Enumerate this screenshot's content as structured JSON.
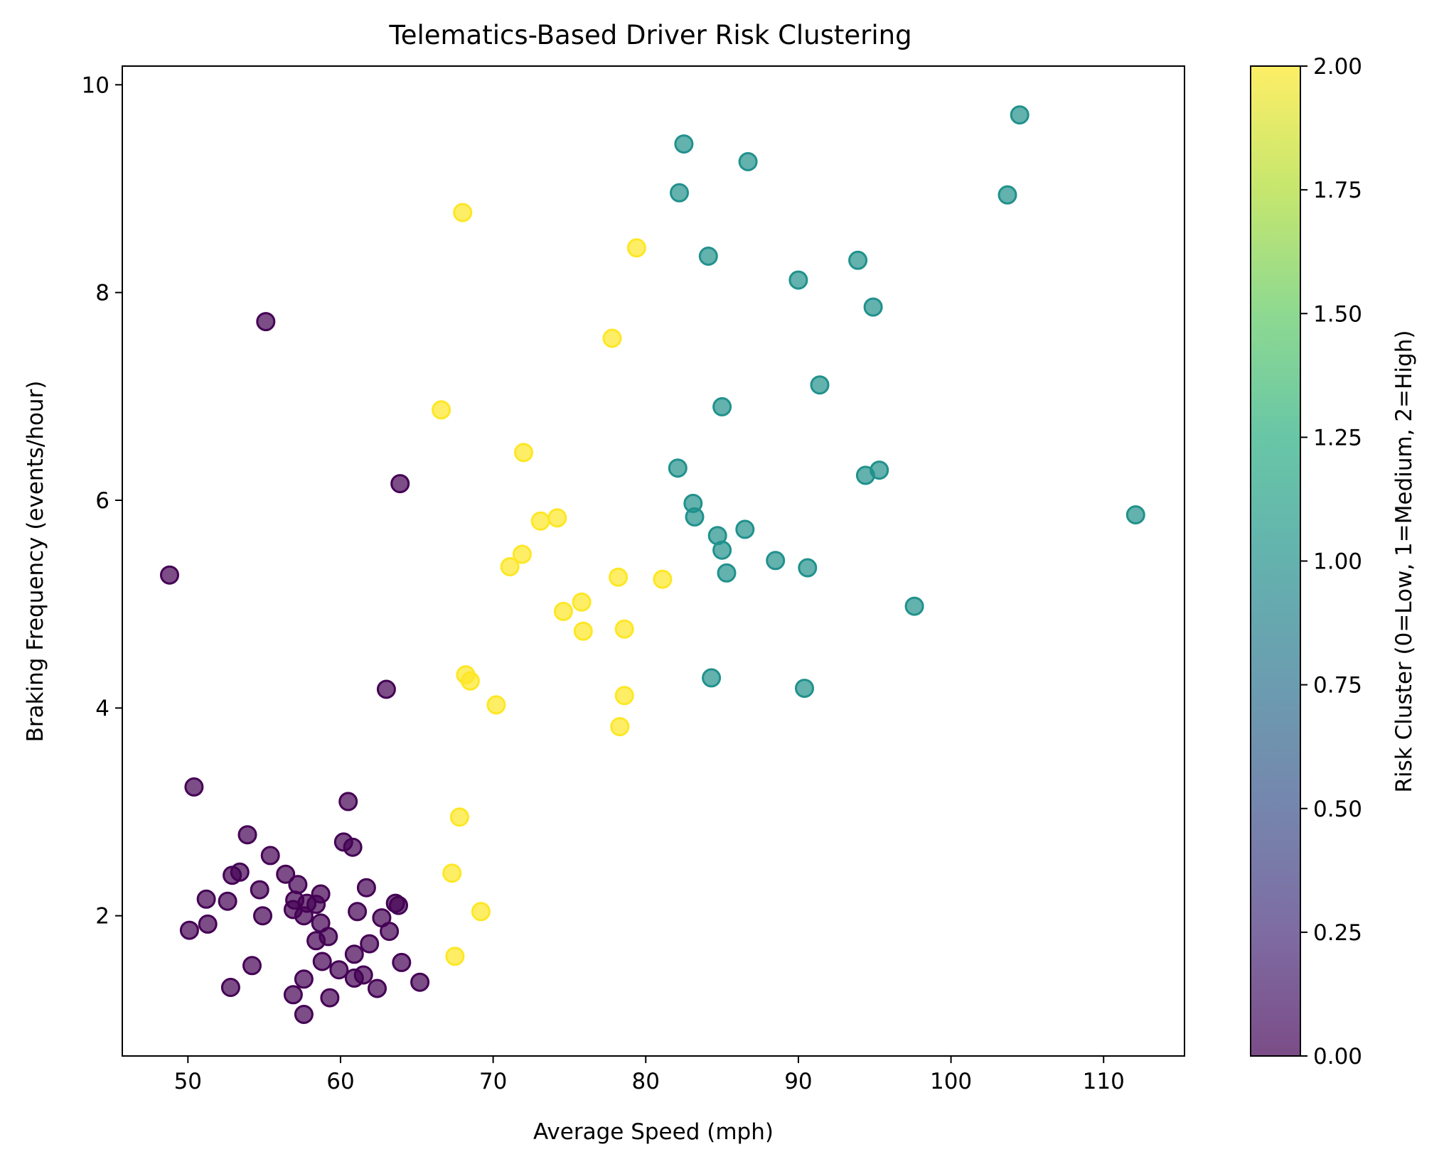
{
  "chart_data": {
    "type": "scatter",
    "title": "Telematics-Based Driver Risk Clustering",
    "xlabel": "Average Speed (mph)",
    "ylabel": "Braking Frequency (events/hour)",
    "colorbar_label": "Risk Cluster (0=Low, 1=Medium, 2=High)",
    "xlim": [
      45.7,
      115.3
    ],
    "ylim": [
      0.65,
      10.18
    ],
    "x_ticks": [
      "50",
      "60",
      "70",
      "80",
      "90",
      "100",
      "110"
    ],
    "y_ticks": [
      "2",
      "4",
      "6",
      "8",
      "10"
    ],
    "colorbar_ticks": [
      "0.00",
      "0.25",
      "0.50",
      "0.75",
      "1.00",
      "1.25",
      "1.50",
      "1.75",
      "2.00"
    ],
    "colorbar_range": [
      0,
      2
    ],
    "grid": false,
    "marker_alpha": 0.7,
    "colors": {
      "cluster_0": "#440154",
      "cluster_1": "#21918c",
      "cluster_2": "#fde725"
    },
    "series": [
      {
        "cluster": 0,
        "points": [
          [
            55.1,
            7.72
          ],
          [
            63.9,
            6.16
          ],
          [
            48.8,
            5.28
          ],
          [
            63.0,
            4.18
          ],
          [
            50.4,
            3.24
          ],
          [
            60.5,
            3.1
          ],
          [
            53.9,
            2.78
          ],
          [
            60.2,
            2.71
          ],
          [
            60.8,
            2.66
          ],
          [
            55.4,
            2.58
          ],
          [
            53.4,
            2.42
          ],
          [
            52.9,
            2.39
          ],
          [
            56.4,
            2.4
          ],
          [
            57.2,
            2.3
          ],
          [
            61.7,
            2.27
          ],
          [
            54.7,
            2.25
          ],
          [
            58.7,
            2.21
          ],
          [
            51.2,
            2.16
          ],
          [
            52.6,
            2.14
          ],
          [
            57.0,
            2.15
          ],
          [
            57.8,
            2.12
          ],
          [
            58.4,
            2.11
          ],
          [
            63.6,
            2.12
          ],
          [
            63.8,
            2.1
          ],
          [
            56.9,
            2.06
          ],
          [
            61.1,
            2.04
          ],
          [
            54.9,
            2.0
          ],
          [
            57.6,
            2.0
          ],
          [
            62.7,
            1.98
          ],
          [
            58.7,
            1.93
          ],
          [
            51.3,
            1.92
          ],
          [
            50.1,
            1.86
          ],
          [
            63.2,
            1.85
          ],
          [
            59.2,
            1.8
          ],
          [
            58.4,
            1.76
          ],
          [
            61.9,
            1.73
          ],
          [
            60.9,
            1.63
          ],
          [
            58.8,
            1.56
          ],
          [
            64.0,
            1.55
          ],
          [
            54.2,
            1.52
          ],
          [
            59.9,
            1.48
          ],
          [
            61.5,
            1.43
          ],
          [
            60.9,
            1.4
          ],
          [
            57.6,
            1.39
          ],
          [
            65.2,
            1.36
          ],
          [
            52.8,
            1.31
          ],
          [
            62.4,
            1.3
          ],
          [
            56.9,
            1.24
          ],
          [
            59.3,
            1.21
          ],
          [
            57.6,
            1.05
          ]
        ]
      },
      {
        "cluster": 1,
        "points": [
          [
            104.5,
            9.71
          ],
          [
            82.5,
            9.43
          ],
          [
            86.7,
            9.26
          ],
          [
            82.2,
            8.96
          ],
          [
            103.7,
            8.94
          ],
          [
            84.1,
            8.35
          ],
          [
            93.9,
            8.31
          ],
          [
            90.0,
            8.12
          ],
          [
            94.9,
            7.86
          ],
          [
            91.4,
            7.11
          ],
          [
            85.0,
            6.9
          ],
          [
            82.1,
            6.31
          ],
          [
            95.3,
            6.29
          ],
          [
            94.4,
            6.24
          ],
          [
            83.1,
            5.97
          ],
          [
            83.2,
            5.84
          ],
          [
            112.1,
            5.86
          ],
          [
            86.5,
            5.72
          ],
          [
            84.7,
            5.66
          ],
          [
            85.0,
            5.52
          ],
          [
            88.5,
            5.42
          ],
          [
            90.6,
            5.35
          ],
          [
            85.3,
            5.3
          ],
          [
            97.6,
            4.98
          ],
          [
            84.3,
            4.29
          ],
          [
            90.4,
            4.19
          ]
        ]
      },
      {
        "cluster": 2,
        "points": [
          [
            68.0,
            8.77
          ],
          [
            79.4,
            8.43
          ],
          [
            77.8,
            7.56
          ],
          [
            66.6,
            6.87
          ],
          [
            72.0,
            6.46
          ],
          [
            73.1,
            5.8
          ],
          [
            74.2,
            5.83
          ],
          [
            71.9,
            5.48
          ],
          [
            71.1,
            5.36
          ],
          [
            78.2,
            5.26
          ],
          [
            81.1,
            5.24
          ],
          [
            75.8,
            5.02
          ],
          [
            74.6,
            4.93
          ],
          [
            75.9,
            4.74
          ],
          [
            78.6,
            4.76
          ],
          [
            68.2,
            4.32
          ],
          [
            68.5,
            4.26
          ],
          [
            70.2,
            4.03
          ],
          [
            78.6,
            4.12
          ],
          [
            78.3,
            3.82
          ],
          [
            67.8,
            2.95
          ],
          [
            67.3,
            2.41
          ],
          [
            69.2,
            2.04
          ],
          [
            67.5,
            1.61
          ]
        ]
      }
    ]
  }
}
